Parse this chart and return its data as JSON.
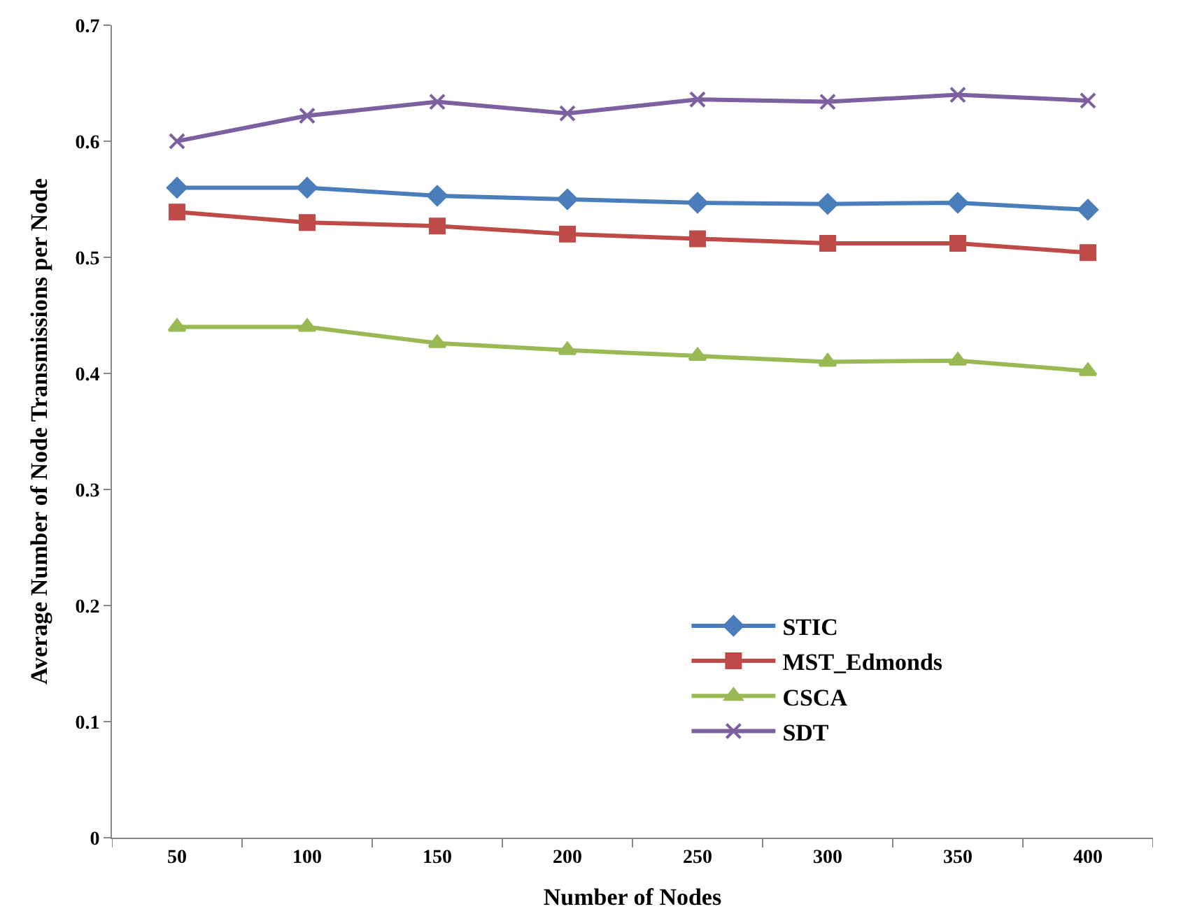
{
  "chart_data": {
    "type": "line",
    "xlabel": "Number of Nodes",
    "ylabel": "Average Number of Node Transmissions per Node",
    "categories": [
      "50",
      "100",
      "150",
      "200",
      "250",
      "300",
      "350",
      "400"
    ],
    "ylim": [
      0,
      0.7
    ],
    "yticks": [
      0,
      0.1,
      0.2,
      0.3,
      0.4,
      0.5,
      0.6,
      0.7
    ],
    "legend": "bottom right",
    "series": [
      {
        "name": "STIC",
        "color": "#4a7ebb",
        "marker": "diamond",
        "values": [
          0.56,
          0.56,
          0.553,
          0.55,
          0.547,
          0.546,
          0.547,
          0.541
        ]
      },
      {
        "name": "MST_Edmonds",
        "color": "#be4b48",
        "marker": "square",
        "values": [
          0.539,
          0.53,
          0.527,
          0.52,
          0.516,
          0.512,
          0.512,
          0.504
        ]
      },
      {
        "name": "CSCA",
        "color": "#98b954",
        "marker": "triangle",
        "values": [
          0.44,
          0.44,
          0.426,
          0.42,
          0.415,
          0.41,
          0.411,
          0.402
        ]
      },
      {
        "name": "SDT",
        "color": "#7d60a0",
        "marker": "cross",
        "values": [
          0.6,
          0.622,
          0.634,
          0.624,
          0.636,
          0.634,
          0.64,
          0.635
        ]
      }
    ]
  }
}
